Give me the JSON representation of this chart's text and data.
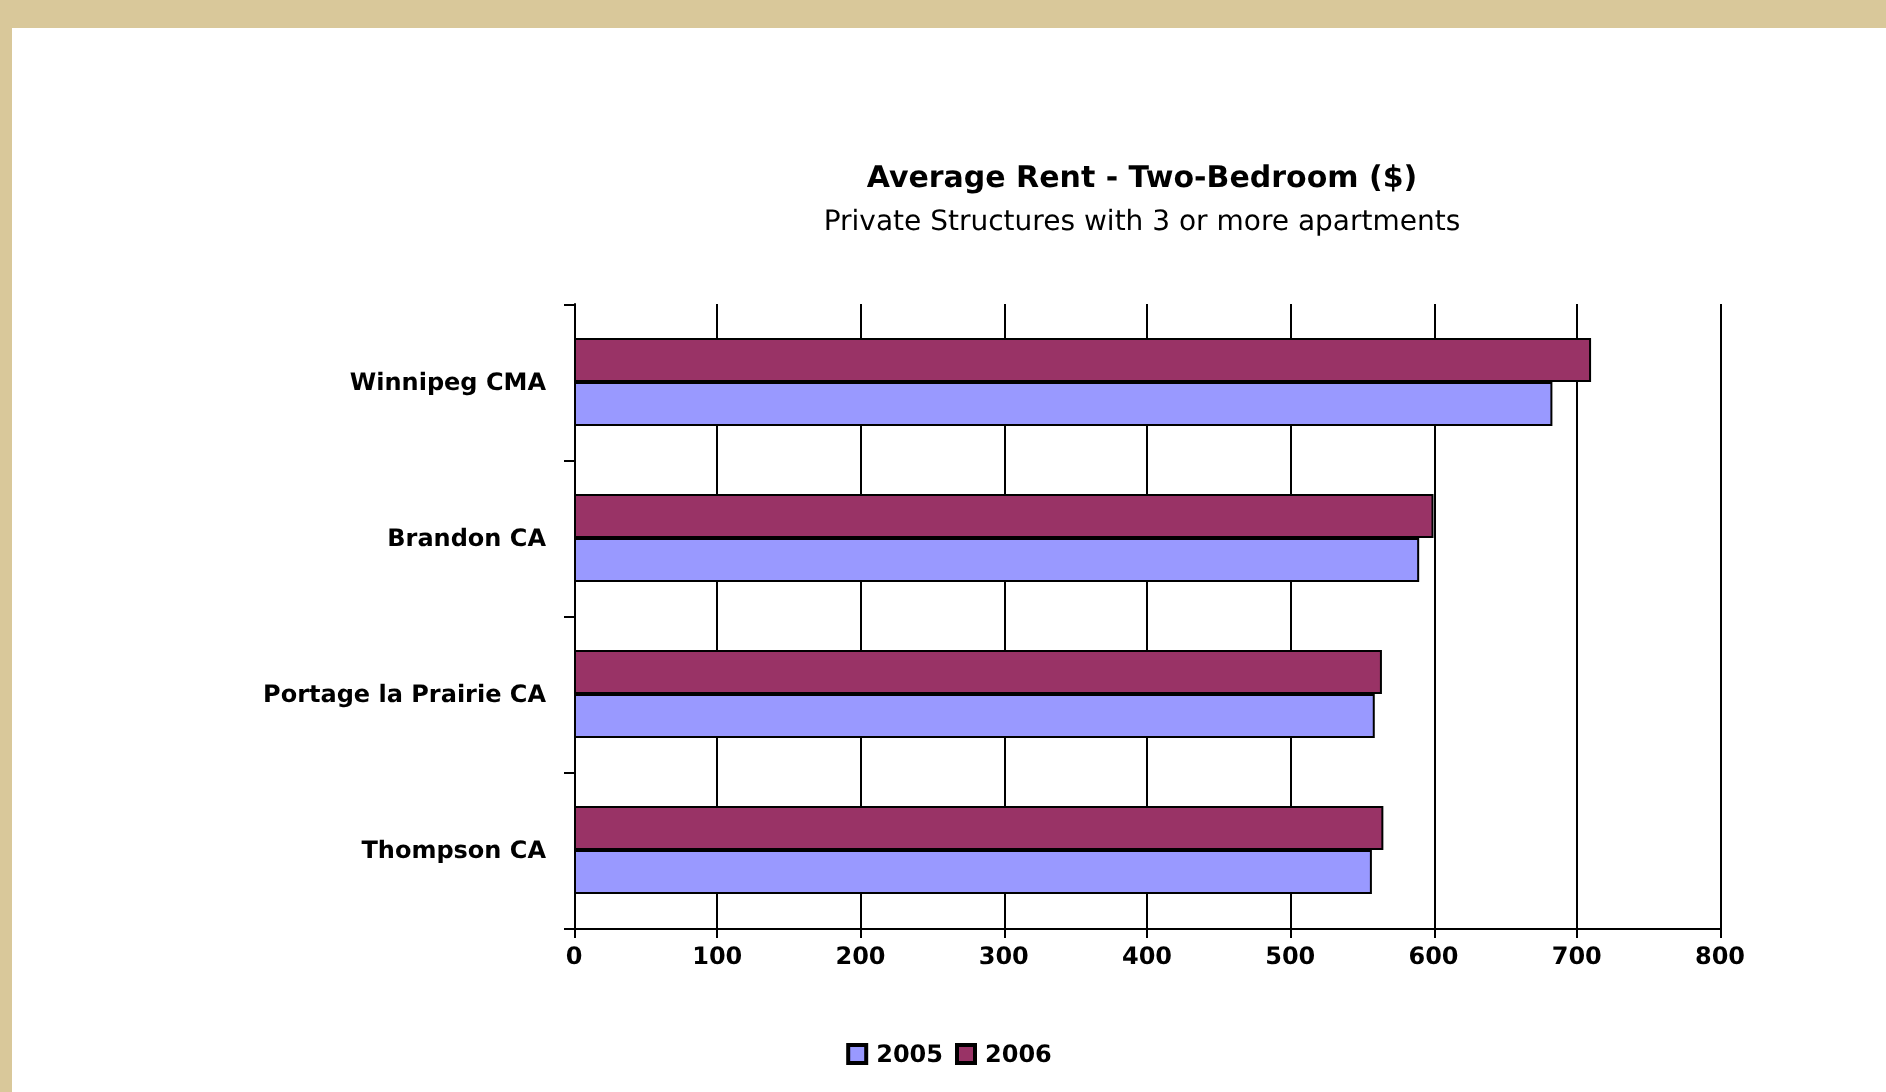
{
  "chart_data": {
    "type": "bar",
    "orientation": "horizontal",
    "title": "Average Rent - Two-Bedroom ($)",
    "subtitle": "Private Structures with 3 or more apartments",
    "categories": [
      "Winnipeg CMA",
      "Brandon CA",
      "Portage la Prairie CA",
      "Thompson CA"
    ],
    "series": [
      {
        "name": "2005",
        "color": "#9999ff",
        "values": [
          683,
          590,
          559,
          557
        ]
      },
      {
        "name": "2006",
        "color": "#993366",
        "values": [
          710,
          600,
          564,
          565
        ]
      }
    ],
    "xlim": [
      0,
      800
    ],
    "xticks": [
      0,
      100,
      200,
      300,
      400,
      500,
      600,
      700,
      800
    ],
    "grid": "x",
    "legend": "bottom"
  }
}
